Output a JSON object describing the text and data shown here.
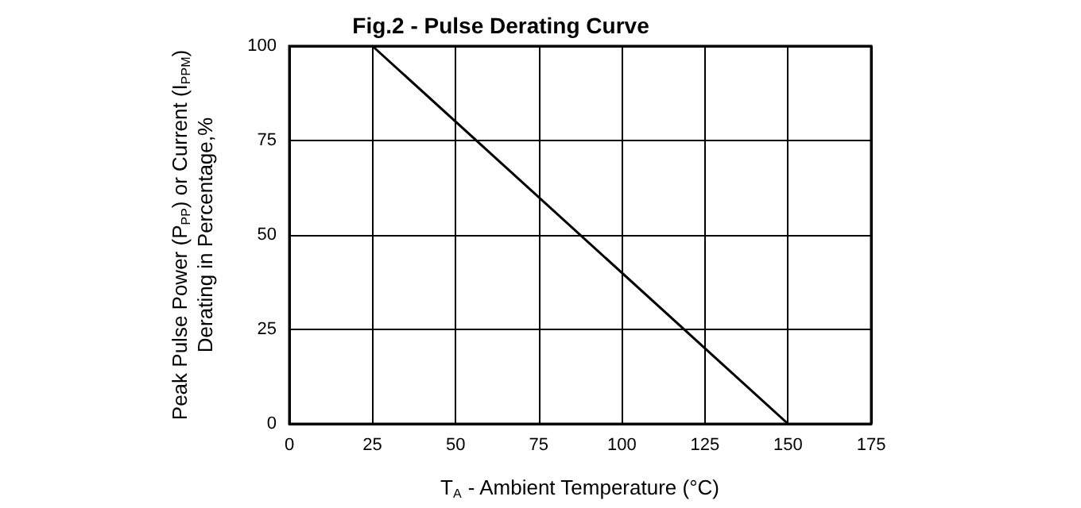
{
  "chart_data": {
    "type": "line",
    "title": "Fig.2 - Pulse Derating Curve",
    "xlabel": "T$_{A}$ - Ambient Temperature (°C)",
    "ylabel": "Peak Pulse Power (P$_{PP}$) or Current (I$_{PPM}$)\nDerating in Percentage,%",
    "x": [
      25,
      150
    ],
    "series": [
      {
        "color": "#000000",
        "values": [
          100,
          0
        ]
      }
    ],
    "xlim": [
      0,
      175
    ],
    "xticks": [
      0,
      25,
      50,
      75,
      100,
      125,
      150,
      175
    ],
    "ylim": [
      0,
      100
    ],
    "yticks": [
      0,
      25,
      50,
      75,
      100
    ],
    "grid": true,
    "marker": "none",
    "line_style": "solid"
  }
}
